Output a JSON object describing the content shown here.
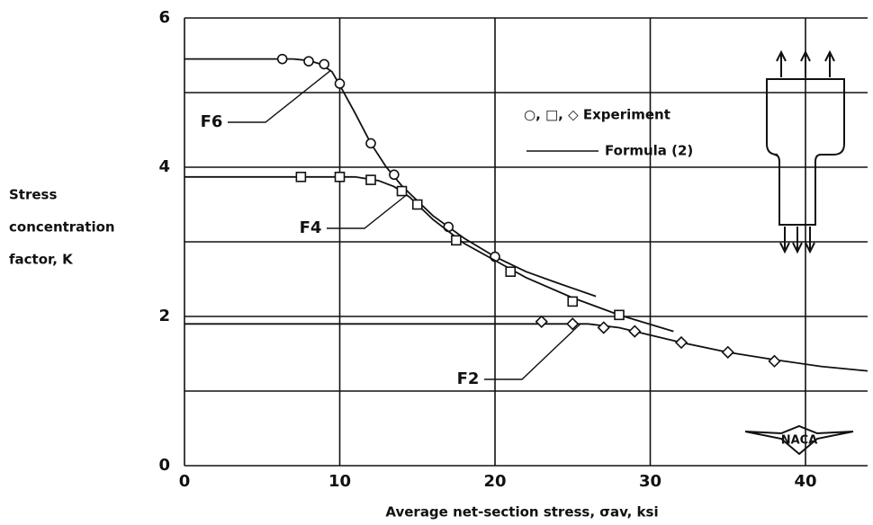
{
  "chart_data": {
    "type": "scatter",
    "xlabel": "Average net-section stress, σav, ksi",
    "ylabel": [
      "Stress",
      "concentration",
      "factor, K"
    ],
    "xlim": [
      0,
      44
    ],
    "ylim": [
      0,
      6
    ],
    "xticks": [
      0,
      10,
      20,
      30,
      40
    ],
    "yticks": [
      0,
      2,
      4,
      6
    ],
    "yminor": [
      1,
      3,
      5
    ],
    "grid": true,
    "color": "#111111",
    "legend": [
      "○, □, ◇ Experiment",
      "Formula (2)"
    ],
    "logo": "NACA",
    "series": [
      {
        "name": "F6",
        "marker": "circle",
        "x": [
          6.3,
          8,
          9,
          10,
          12,
          13.5,
          17,
          20
        ],
        "values": [
          5.45,
          5.42,
          5.38,
          5.12,
          4.32,
          3.9,
          3.2,
          2.8
        ],
        "curve_x": [
          0,
          7,
          8,
          8.8,
          9.5,
          10,
          11,
          12,
          13,
          14,
          16,
          18,
          20,
          22,
          24,
          26.5
        ],
        "curve_values": [
          5.45,
          5.45,
          5.43,
          5.38,
          5.28,
          5.1,
          4.72,
          4.32,
          4.0,
          3.75,
          3.35,
          3.05,
          2.8,
          2.6,
          2.45,
          2.27
        ]
      },
      {
        "name": "F4",
        "marker": "square",
        "x": [
          7.5,
          10,
          12,
          14,
          15,
          17.5,
          21,
          25,
          28
        ],
        "values": [
          3.87,
          3.87,
          3.83,
          3.68,
          3.5,
          3.02,
          2.6,
          2.2,
          2.02
        ],
        "curve_x": [
          0,
          11,
          12.5,
          13.5,
          14.5,
          16,
          18,
          20,
          22,
          25,
          28,
          31.5
        ],
        "curve_values": [
          3.87,
          3.87,
          3.82,
          3.74,
          3.6,
          3.3,
          2.98,
          2.75,
          2.52,
          2.25,
          2.02,
          1.8
        ]
      },
      {
        "name": "F2",
        "marker": "diamond",
        "x": [
          23,
          25,
          27,
          29,
          32,
          35,
          38
        ],
        "values": [
          1.93,
          1.9,
          1.85,
          1.8,
          1.65,
          1.52,
          1.4
        ],
        "curve_x": [
          0,
          26,
          28,
          30,
          32,
          35,
          38,
          41,
          44
        ],
        "curve_values": [
          1.9,
          1.9,
          1.85,
          1.75,
          1.65,
          1.52,
          1.42,
          1.33,
          1.27
        ]
      }
    ]
  }
}
